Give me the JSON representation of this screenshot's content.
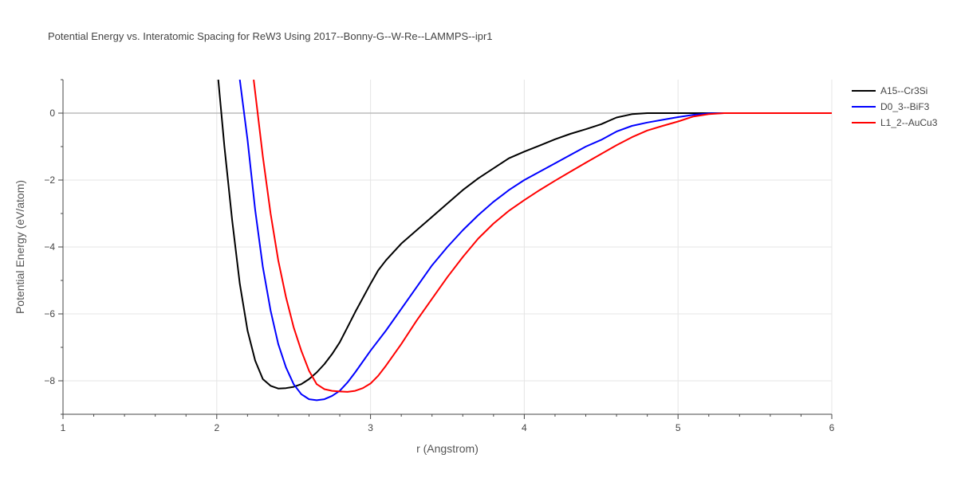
{
  "chart_data": {
    "type": "line",
    "title": "Potential Energy vs. Interatomic Spacing for ReW3 Using 2017--Bonny-G--W-Re--LAMMPS--ipr1",
    "xlabel": "r (Angstrom)",
    "ylabel": "Potential Energy (eV/atom)",
    "xlim": [
      1,
      6
    ],
    "ylim": [
      -9,
      1
    ],
    "xticks": [
      1,
      2,
      3,
      4,
      5,
      6
    ],
    "yticks": [
      -8,
      -6,
      -4,
      -2,
      0
    ],
    "xtick_labels": [
      "1",
      "2",
      "3",
      "4",
      "5",
      "6"
    ],
    "ytick_labels": [
      "−8",
      "−6",
      "−4",
      "−2",
      "0"
    ],
    "grid": true,
    "legend_position": "top-right",
    "series": [
      {
        "name": "A15--Cr3Si",
        "color": "#000000",
        "x": [
          2.01,
          2.05,
          2.1,
          2.15,
          2.2,
          2.25,
          2.3,
          2.35,
          2.4,
          2.45,
          2.5,
          2.55,
          2.6,
          2.65,
          2.7,
          2.75,
          2.8,
          2.85,
          2.9,
          3.0,
          3.05,
          3.1,
          3.15,
          3.2,
          3.3,
          3.4,
          3.5,
          3.6,
          3.7,
          3.8,
          3.9,
          4.0,
          4.1,
          4.2,
          4.3,
          4.4,
          4.5,
          4.6,
          4.7,
          4.8,
          4.9,
          5.0,
          5.1,
          5.2,
          5.3,
          5.4,
          5.5,
          6.0
        ],
        "y": [
          1.0,
          -1.0,
          -3.2,
          -5.1,
          -6.5,
          -7.4,
          -7.95,
          -8.15,
          -8.23,
          -8.22,
          -8.18,
          -8.1,
          -7.95,
          -7.75,
          -7.5,
          -7.2,
          -6.85,
          -6.4,
          -5.95,
          -5.1,
          -4.7,
          -4.4,
          -4.15,
          -3.9,
          -3.5,
          -3.1,
          -2.7,
          -2.3,
          -1.95,
          -1.65,
          -1.35,
          -1.15,
          -0.97,
          -0.78,
          -0.62,
          -0.48,
          -0.33,
          -0.13,
          -0.03,
          0.0,
          0.0,
          0.0,
          0.0,
          0.0,
          0.0,
          0.0,
          0.0,
          0.0
        ]
      },
      {
        "name": "D0_3--BiF3",
        "color": "#0000ff",
        "x": [
          2.15,
          2.2,
          2.25,
          2.3,
          2.35,
          2.4,
          2.45,
          2.5,
          2.55,
          2.6,
          2.65,
          2.7,
          2.75,
          2.8,
          2.85,
          2.9,
          3.0,
          3.1,
          3.2,
          3.3,
          3.4,
          3.5,
          3.6,
          3.7,
          3.8,
          3.9,
          4.0,
          4.1,
          4.2,
          4.3,
          4.4,
          4.5,
          4.6,
          4.7,
          4.8,
          4.9,
          5.0,
          5.1,
          5.2,
          5.3,
          5.4,
          6.0
        ],
        "y": [
          1.0,
          -0.8,
          -2.9,
          -4.6,
          -5.9,
          -6.9,
          -7.6,
          -8.1,
          -8.4,
          -8.55,
          -8.58,
          -8.55,
          -8.45,
          -8.3,
          -8.05,
          -7.75,
          -7.1,
          -6.5,
          -5.85,
          -5.2,
          -4.55,
          -4.0,
          -3.5,
          -3.05,
          -2.65,
          -2.3,
          -2.0,
          -1.75,
          -1.5,
          -1.25,
          -1.0,
          -0.8,
          -0.55,
          -0.38,
          -0.28,
          -0.2,
          -0.12,
          -0.05,
          -0.01,
          0.0,
          0.0,
          0.0
        ]
      },
      {
        "name": "L1_2--AuCu3",
        "color": "#ff0000",
        "x": [
          2.24,
          2.3,
          2.35,
          2.4,
          2.45,
          2.5,
          2.55,
          2.6,
          2.65,
          2.7,
          2.75,
          2.8,
          2.85,
          2.9,
          2.95,
          3.0,
          3.05,
          3.1,
          3.2,
          3.3,
          3.4,
          3.5,
          3.6,
          3.7,
          3.8,
          3.9,
          4.0,
          4.1,
          4.2,
          4.3,
          4.4,
          4.5,
          4.6,
          4.7,
          4.8,
          4.9,
          5.0,
          5.1,
          5.2,
          5.3,
          5.4,
          6.0
        ],
        "y": [
          1.0,
          -1.3,
          -3.0,
          -4.4,
          -5.5,
          -6.4,
          -7.1,
          -7.7,
          -8.1,
          -8.25,
          -8.3,
          -8.32,
          -8.33,
          -8.3,
          -8.22,
          -8.08,
          -7.85,
          -7.55,
          -6.9,
          -6.2,
          -5.55,
          -4.9,
          -4.3,
          -3.75,
          -3.3,
          -2.92,
          -2.6,
          -2.3,
          -2.02,
          -1.75,
          -1.48,
          -1.22,
          -0.96,
          -0.72,
          -0.52,
          -0.38,
          -0.25,
          -0.1,
          -0.03,
          0.0,
          0.0,
          0.0
        ]
      }
    ]
  }
}
